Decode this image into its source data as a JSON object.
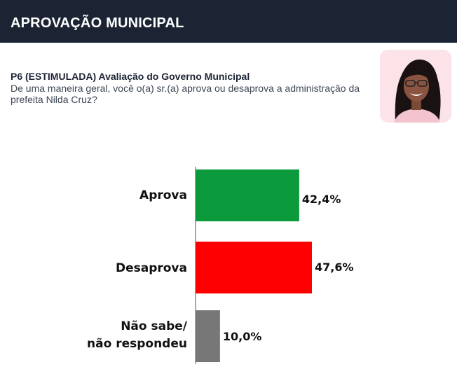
{
  "header": {
    "title": "APROVAÇÃO MUNICIPAL"
  },
  "question": {
    "title": "P6 (ESTIMULADA) Avaliação do Governo Municipal",
    "text": "De uma maneira geral, você o(a) sr.(a) aprova ou desaprova a administração da prefeita Nilda Cruz?"
  },
  "colors": {
    "header_bg": "#1c2434",
    "aprova": "#0a9a3c",
    "desaprova": "#ff0000",
    "nao_sabe": "#777777"
  },
  "chart_data": {
    "type": "bar",
    "orientation": "horizontal",
    "categories": [
      [
        "Aprova"
      ],
      [
        "Desaprova"
      ],
      [
        "Não sabe/",
        "não respondeu"
      ]
    ],
    "values": [
      42.4,
      47.6,
      10.0
    ],
    "value_labels": [
      "42,4%",
      "47,6%",
      "10,0%"
    ],
    "bar_colors": [
      "#0a9a3c",
      "#ff0000",
      "#777777"
    ],
    "xlim": [
      0,
      47.6
    ],
    "grid": false,
    "legend": "none"
  }
}
